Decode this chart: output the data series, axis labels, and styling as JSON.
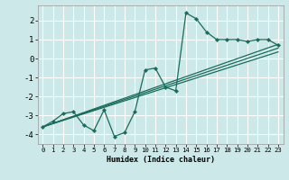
{
  "xlabel": "Humidex (Indice chaleur)",
  "ylabel": "",
  "bg_color": "#cce8e8",
  "grid_color": "#ffffff",
  "line_color": "#1a6b5a",
  "xlim": [
    -0.5,
    23.5
  ],
  "ylim": [
    -4.5,
    2.8
  ],
  "xticks": [
    0,
    1,
    2,
    3,
    4,
    5,
    6,
    7,
    8,
    9,
    10,
    11,
    12,
    13,
    14,
    15,
    16,
    17,
    18,
    19,
    20,
    21,
    22,
    23
  ],
  "yticks": [
    -4,
    -3,
    -2,
    -1,
    0,
    1,
    2
  ],
  "main_x": [
    0,
    1,
    2,
    3,
    4,
    5,
    6,
    7,
    8,
    9,
    10,
    11,
    12,
    13,
    14,
    15,
    16,
    17,
    18,
    19,
    20,
    21,
    22,
    23
  ],
  "main_y": [
    -3.6,
    -3.3,
    -2.9,
    -2.8,
    -3.5,
    -3.8,
    -2.7,
    -4.1,
    -3.9,
    -2.8,
    -0.6,
    -0.5,
    -1.5,
    -1.7,
    2.4,
    2.1,
    1.4,
    1.0,
    1.0,
    1.0,
    0.9,
    1.0,
    1.0,
    0.7
  ],
  "line1_x": [
    0,
    23
  ],
  "line1_y": [
    -3.6,
    0.75
  ],
  "line2_x": [
    0,
    23
  ],
  "line2_y": [
    -3.6,
    0.55
  ],
  "line3_x": [
    0,
    23
  ],
  "line3_y": [
    -3.6,
    0.35
  ],
  "xlabel_fontsize": 6.0,
  "ytick_fontsize": 6.5,
  "xtick_fontsize": 5.2
}
